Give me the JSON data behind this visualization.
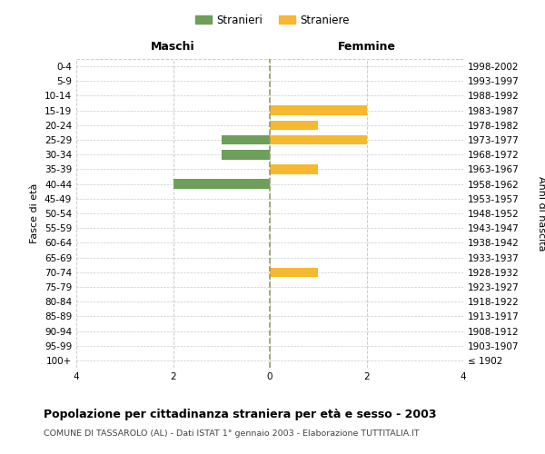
{
  "age_groups": [
    "100+",
    "95-99",
    "90-94",
    "85-89",
    "80-84",
    "75-79",
    "70-74",
    "65-69",
    "60-64",
    "55-59",
    "50-54",
    "45-49",
    "40-44",
    "35-39",
    "30-34",
    "25-29",
    "20-24",
    "15-19",
    "10-14",
    "5-9",
    "0-4"
  ],
  "birth_years": [
    "≤ 1902",
    "1903-1907",
    "1908-1912",
    "1913-1917",
    "1918-1922",
    "1923-1927",
    "1928-1932",
    "1933-1937",
    "1938-1942",
    "1943-1947",
    "1948-1952",
    "1953-1957",
    "1958-1962",
    "1963-1967",
    "1968-1972",
    "1973-1977",
    "1978-1982",
    "1983-1987",
    "1988-1992",
    "1993-1997",
    "1998-2002"
  ],
  "maschi": [
    0,
    0,
    0,
    0,
    0,
    0,
    0,
    0,
    0,
    0,
    0,
    0,
    2,
    0,
    1,
    1,
    0,
    0,
    0,
    0,
    0
  ],
  "femmine": [
    0,
    0,
    0,
    0,
    0,
    0,
    1,
    0,
    0,
    0,
    0,
    0,
    0,
    1,
    0,
    2,
    1,
    2,
    0,
    0,
    0
  ],
  "male_color": "#6d9e5a",
  "female_color": "#f5b82e",
  "xlim": 4,
  "title": "Popolazione per cittadinanza straniera per età e sesso - 2003",
  "subtitle": "COMUNE DI TASSAROLO (AL) - Dati ISTAT 1° gennaio 2003 - Elaborazione TUTTITALIA.IT",
  "ylabel_left": "Fasce di età",
  "ylabel_right": "Anni di nascita",
  "legend_stranieri": "Stranieri",
  "legend_straniere": "Straniere",
  "label_maschi": "Maschi",
  "label_femmine": "Femmine",
  "bg_color": "#ffffff",
  "grid_color": "#cccccc",
  "center_line_color": "#999966"
}
